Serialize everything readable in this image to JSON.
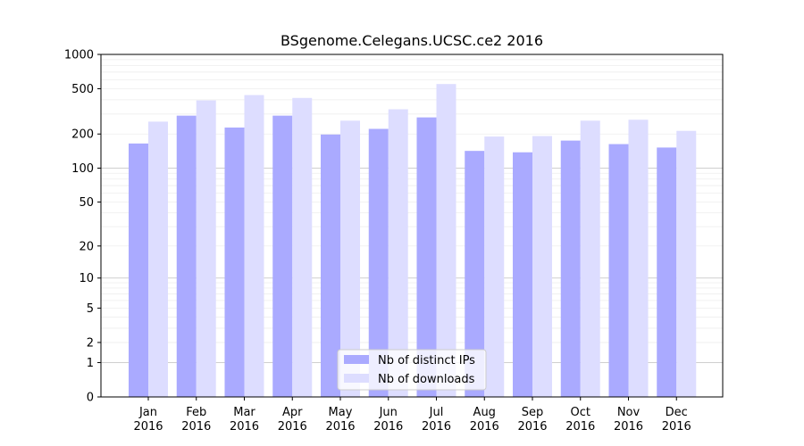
{
  "chart_data": {
    "type": "bar",
    "title": "BSgenome.Celegans.UCSC.ce2 2016",
    "xlabel": "",
    "ylabel": "",
    "yscale": "log1p",
    "ylim": [
      0,
      1000
    ],
    "yticks": [
      0,
      1,
      2,
      5,
      10,
      20,
      50,
      100,
      200,
      500,
      1000
    ],
    "grid": true,
    "legend_position": "bottom-center",
    "categories": [
      [
        "Jan",
        "2016"
      ],
      [
        "Feb",
        "2016"
      ],
      [
        "Mar",
        "2016"
      ],
      [
        "Apr",
        "2016"
      ],
      [
        "May",
        "2016"
      ],
      [
        "Jun",
        "2016"
      ],
      [
        "Jul",
        "2016"
      ],
      [
        "Aug",
        "2016"
      ],
      [
        "Sep",
        "2016"
      ],
      [
        "Oct",
        "2016"
      ],
      [
        "Nov",
        "2016"
      ],
      [
        "Dec",
        "2016"
      ]
    ],
    "series": [
      {
        "name": "Nb of distinct IPs",
        "color": "#aaaaff",
        "values": [
          165,
          290,
          228,
          290,
          198,
          222,
          280,
          142,
          138,
          175,
          163,
          152
        ]
      },
      {
        "name": "Nb of downloads",
        "color": "#ddddff",
        "values": [
          257,
          395,
          440,
          415,
          262,
          330,
          550,
          190,
          192,
          262,
          267,
          213
        ]
      }
    ]
  }
}
